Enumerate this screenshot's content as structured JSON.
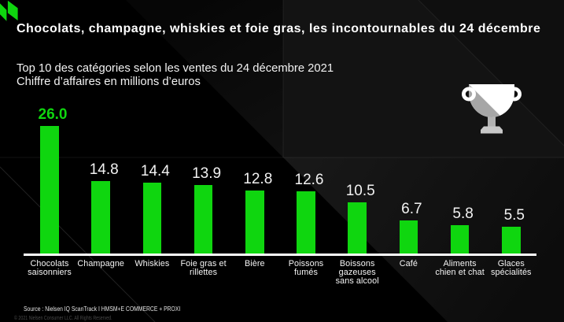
{
  "brand": {
    "logo_icon": "nielseniq-logo",
    "green": "#0fd60f"
  },
  "header": {
    "title": "Chocolats, champagne, whiskies et foie gras, les incontournables du 24 décembre"
  },
  "subtitle": {
    "line1": "Top 10 des catégories selon les ventes du 24 décembre 2021",
    "line2": "Chiffre d’affaires en millions d’euros"
  },
  "decor": {
    "trophy_icon": "trophy-icon"
  },
  "chart_data": {
    "type": "bar",
    "title": "Top 10 des catégories selon les ventes du 24 décembre 2021",
    "ylabel": "Chiffre d’affaires en millions d’euros",
    "xlabel": "",
    "categories": [
      "Chocolats\nsaisonniers",
      "Champagne",
      "Whiskies",
      "Foie gras et\nrillettes",
      "Bière",
      "Poissons\nfumés",
      "Boissons\ngazeuses\nsans alcool",
      "Café",
      "Aliments\nchien et chat",
      "Glaces\nspécialités"
    ],
    "values": [
      26.0,
      14.8,
      14.4,
      13.9,
      12.8,
      12.6,
      10.5,
      6.7,
      5.8,
      5.5
    ],
    "value_labels": [
      "26.0",
      "14.8",
      "14.4",
      "13.9",
      "12.8",
      "12.6",
      "10.5",
      "6.7",
      "5.8",
      "5.5"
    ],
    "bar_color": "#0fd60f",
    "highlight_index": 0,
    "highlight_label_color": "#0fd60f",
    "value_label_color": "#f2f2f2",
    "axis_color": "#ffffff",
    "ylim": [
      0,
      26
    ],
    "grid": false,
    "legend": false
  },
  "footer": {
    "source": "Source : Nielsen IQ ScanTrack I HMSM+E COMMERCE + PROXI",
    "copyright": "© 2021 Nielsen Consumer LLC. All Rights Reserved."
  }
}
